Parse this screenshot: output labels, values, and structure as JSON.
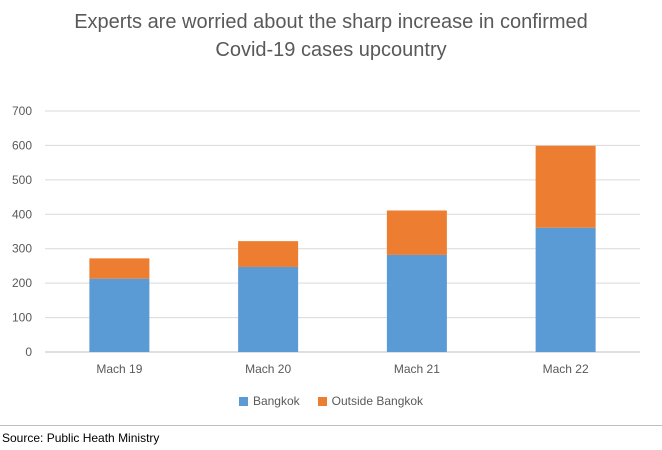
{
  "chart_data": {
    "type": "bar",
    "stacked": true,
    "title": [
      "Experts are worried about the sharp increase in confirmed",
      "Covid-19 cases upcountry"
    ],
    "categories": [
      "Mach 19",
      "Mach 20",
      "Mach 21",
      "Mach 22"
    ],
    "series": [
      {
        "name": "Bangkok",
        "values": [
          213,
          247,
          282,
          361
        ],
        "color": "#5b9bd5"
      },
      {
        "name": "Outside Bangkok",
        "values": [
          59,
          75,
          129,
          238
        ],
        "color": "#ed7d31"
      }
    ],
    "ylim": [
      0,
      700
    ],
    "yticks": [
      0,
      100,
      200,
      300,
      400,
      500,
      600,
      700
    ],
    "grid": true,
    "legend_position": "bottom"
  },
  "source_text": "Source: Public Heath Ministry"
}
